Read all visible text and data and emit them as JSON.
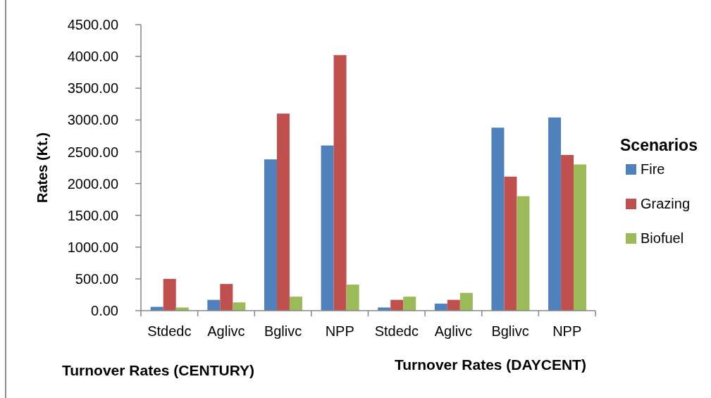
{
  "chart_data": {
    "type": "bar",
    "categories": [
      "Stdedc",
      "Aglivc",
      "Bglivc",
      "NPP",
      "Stdedc",
      "Aglivc",
      "Bglivc",
      "NPP"
    ],
    "series": [
      {
        "name": "Fire",
        "color": "#4f81bd",
        "values": [
          60,
          170,
          2380,
          2600,
          50,
          110,
          2880,
          3040
        ]
      },
      {
        "name": "Grazing",
        "color": "#c0504d",
        "values": [
          500,
          420,
          3100,
          4020,
          170,
          170,
          2110,
          2450
        ]
      },
      {
        "name": "Biofuel",
        "color": "#9bbb59",
        "values": [
          50,
          130,
          220,
          410,
          220,
          280,
          1800,
          2300
        ]
      }
    ],
    "ylabel": "Rates (Kt.)",
    "legend_title": "Scenarios",
    "annotations": [
      "Turnover Rates (CENTURY)",
      "Turnover Rates (DAYCENT)"
    ],
    "ylim": [
      0,
      4500
    ],
    "yticks": [
      {
        "value": 0,
        "label": "0.00"
      },
      {
        "value": 500,
        "label": "500.00"
      },
      {
        "value": 1000,
        "label": "1000.00"
      },
      {
        "value": 1500,
        "label": "1500.00"
      },
      {
        "value": 2000,
        "label": "2000.00"
      },
      {
        "value": 2500,
        "label": "2500.00"
      },
      {
        "value": 3000,
        "label": "3000.00"
      },
      {
        "value": 3500,
        "label": "3500.00"
      },
      {
        "value": 4000,
        "label": "4000.00"
      },
      {
        "value": 4500,
        "label": "4500.00"
      }
    ],
    "legend": "right"
  }
}
